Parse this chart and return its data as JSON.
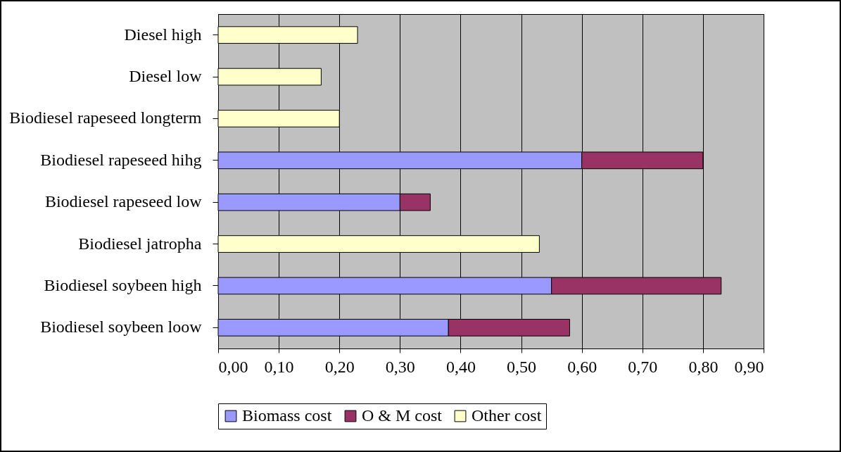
{
  "chart_data": {
    "type": "bar",
    "orientation": "horizontal",
    "stacked": true,
    "categories": [
      "Diesel high",
      "Diesel low",
      "Biodiesel rapeseed longterm",
      "Biodiesel rapeseed hihg",
      "Biodiesel rapeseed low",
      "Biodiesel jatropha",
      "Biodiesel soybeen high",
      "Biodiesel soybeen loow"
    ],
    "series": [
      {
        "name": "Biomass cost",
        "color": "#9999ff",
        "values": [
          null,
          null,
          null,
          0.6,
          0.3,
          null,
          0.55,
          0.38
        ]
      },
      {
        "name": "O & M cost",
        "color": "#993366",
        "values": [
          null,
          null,
          null,
          0.2,
          0.05,
          null,
          0.28,
          0.2
        ]
      },
      {
        "name": "Other cost",
        "color": "#ffffcc",
        "values": [
          0.23,
          0.17,
          0.2,
          null,
          null,
          0.53,
          null,
          null
        ]
      }
    ],
    "xlim": [
      0,
      0.9
    ],
    "xticks": [
      {
        "value": 0,
        "label": "0,00"
      },
      {
        "value": 0.1,
        "label": "0,10"
      },
      {
        "value": 0.2,
        "label": "0,20"
      },
      {
        "value": 0.3,
        "label": "0,30"
      },
      {
        "value": 0.4,
        "label": "0,40"
      },
      {
        "value": 0.5,
        "label": "0,50"
      },
      {
        "value": 0.6,
        "label": "0,60"
      },
      {
        "value": 0.7,
        "label": "0,70"
      },
      {
        "value": 0.8,
        "label": "0,80"
      },
      {
        "value": 0.9,
        "label": "0,90"
      }
    ],
    "grid": "x",
    "legend": "bottom"
  }
}
